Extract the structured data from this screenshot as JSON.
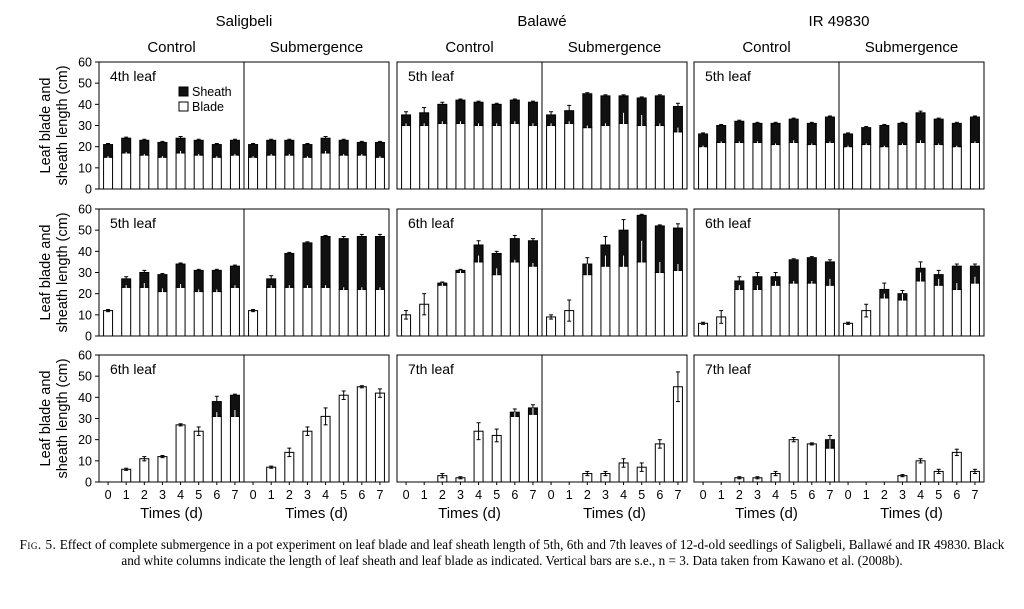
{
  "figure": {
    "fig_label": "Fig. 5.",
    "caption_text": "Effect of complete submergence in a pot experiment on leaf blade and leaf sheath length of 5th, 6th and 7th leaves of 12-d-old seedlings of Saligbeli, Ballawé and IR 49830. Black and white columns indicate the length of leaf sheath and leaf blade as indicated. Vertical bars are s.e., n = 3. Data taken from Kawano et al. (2008b)."
  },
  "colors": {
    "sheath": "#111111",
    "blade": "#ffffff",
    "axis": "#000000"
  },
  "chart_data": {
    "type": "bar",
    "stacked": true,
    "varieties": [
      "Saligbeli",
      "Balawé",
      "IR 49830"
    ],
    "treatments": [
      "Control",
      "Submergence"
    ],
    "legend": {
      "entries": [
        "Sheath",
        "Blade"
      ],
      "placement": "top-left of first panel"
    },
    "ylabel_lines": [
      "Leaf blade and",
      "sheath length (cm)"
    ],
    "xlabel": "Times (d)",
    "x": [
      0,
      1,
      2,
      3,
      4,
      5,
      6,
      7
    ],
    "ylim": [
      0,
      60
    ],
    "yticks": [
      0,
      10,
      20,
      30,
      40,
      50,
      60
    ],
    "series_names": [
      "Blade",
      "Sheath"
    ],
    "rows": [
      {
        "row": 1,
        "leaves": [
          "4th leaf",
          "5th leaf",
          "5th leaf"
        ],
        "panels": [
          {
            "variety": "Saligbeli",
            "treatment": "Control",
            "blade": [
              15,
              17,
              16,
              15,
              17,
              16,
              15,
              16
            ],
            "sheath": [
              6,
              7,
              7,
              7,
              7,
              7,
              6,
              7
            ],
            "blade_err": [
              0.5,
              0.5,
              0.5,
              0.5,
              1.0,
              0.5,
              0.5,
              0.5
            ],
            "total_err": [
              0.5,
              0.5,
              0.5,
              0.5,
              0.8,
              0.5,
              0.5,
              0.5
            ]
          },
          {
            "variety": "Saligbeli",
            "treatment": "Submergence",
            "blade": [
              15,
              16,
              16,
              15,
              17,
              16,
              16,
              15
            ],
            "sheath": [
              6,
              7,
              7,
              6,
              7,
              7,
              6,
              7
            ],
            "blade_err": [
              0.5,
              0.5,
              0.5,
              0.5,
              1.0,
              0.5,
              0.5,
              0.5
            ],
            "total_err": [
              0.5,
              0.5,
              0.5,
              0.5,
              0.8,
              0.5,
              0.5,
              0.5
            ]
          },
          {
            "variety": "Balawé",
            "treatment": "Control",
            "blade": [
              30,
              30,
              31,
              31,
              30,
              30,
              31,
              30
            ],
            "sheath": [
              5,
              6,
              9,
              11,
              11,
              10,
              11,
              11
            ],
            "blade_err": [
              1.0,
              1.0,
              1.0,
              1.0,
              1.0,
              1.0,
              1.0,
              1.0
            ],
            "total_err": [
              1.5,
              2.5,
              1.0,
              0.5,
              0.5,
              0.5,
              0.5,
              0.5
            ]
          },
          {
            "variety": "Balawé",
            "treatment": "Submergence",
            "blade": [
              30,
              31,
              29,
              30,
              31,
              30,
              30,
              27
            ],
            "sheath": [
              5,
              6,
              16,
              14,
              13,
              13,
              14,
              12
            ],
            "blade_err": [
              1.0,
              1.0,
              1.0,
              1.0,
              5.0,
              5.0,
              1.0,
              2.0
            ],
            "total_err": [
              1.5,
              2.5,
              0.5,
              0.5,
              0.5,
              0.5,
              0.5,
              1.5
            ]
          },
          {
            "variety": "IR 49830",
            "treatment": "Control",
            "blade": [
              20,
              22,
              22,
              22,
              21,
              22,
              21,
              22
            ],
            "sheath": [
              6,
              8,
              10,
              9,
              10,
              11,
              10,
              12
            ],
            "blade_err": [
              0.5,
              0.5,
              0.5,
              0.5,
              0.5,
              1.0,
              0.5,
              0.5
            ],
            "total_err": [
              0.5,
              0.5,
              0.5,
              0.5,
              0.5,
              0.5,
              0.5,
              0.5
            ]
          },
          {
            "variety": "IR 49830",
            "treatment": "Submergence",
            "blade": [
              20,
              21,
              20,
              21,
              22,
              21,
              20,
              22
            ],
            "sheath": [
              6,
              8,
              10,
              10,
              14,
              12,
              11,
              12
            ],
            "blade_err": [
              0.5,
              0.5,
              0.5,
              0.5,
              1.0,
              0.5,
              0.5,
              0.5
            ],
            "total_err": [
              0.5,
              0.5,
              0.5,
              0.5,
              0.8,
              0.5,
              0.5,
              0.5
            ]
          }
        ]
      },
      {
        "row": 2,
        "leaves": [
          "5th leaf",
          "6th leaf",
          "6th leaf"
        ],
        "panels": [
          {
            "variety": "Saligbeli",
            "treatment": "Control",
            "blade": [
              12,
              23,
              23,
              21,
              23,
              21,
              21,
              23
            ],
            "sheath": [
              0,
              4,
              7,
              8,
              11,
              10,
              10,
              10
            ],
            "blade_err": [
              0.5,
              1.0,
              2.0,
              1.5,
              1.5,
              1.0,
              1.0,
              1.0
            ],
            "total_err": [
              0.0,
              1.0,
              1.0,
              0.5,
              0.5,
              0.5,
              0.5,
              0.5
            ]
          },
          {
            "variety": "Saligbeli",
            "treatment": "Submergence",
            "blade": [
              12,
              23,
              23,
              23,
              23,
              22,
              22,
              22
            ],
            "sheath": [
              0,
              4,
              16,
              21,
              24,
              24,
              25,
              25
            ],
            "blade_err": [
              0.5,
              1.0,
              1.0,
              1.0,
              1.0,
              1.0,
              1.0,
              1.0
            ],
            "total_err": [
              0.0,
              1.5,
              0.5,
              0.5,
              0.5,
              1.0,
              1.0,
              1.0
            ]
          },
          {
            "variety": "Balawé",
            "treatment": "Control",
            "blade": [
              10,
              15,
              24,
              30,
              35,
              29,
              35,
              33
            ],
            "sheath": [
              0,
              0,
              1,
              1,
              8,
              10,
              11,
              12
            ],
            "blade_err": [
              2.0,
              5.0,
              9.0,
              1.0,
              3.0,
              3.0,
              1.0,
              1.5
            ],
            "total_err": [
              0.0,
              0.0,
              0.5,
              0.5,
              2.0,
              1.0,
              1.5,
              1.0
            ]
          },
          {
            "variety": "Balawé",
            "treatment": "Submergence",
            "blade": [
              9,
              12,
              29,
              33,
              33,
              35,
              30,
              31
            ],
            "sheath": [
              0,
              0,
              5,
              10,
              17,
              22,
              22,
              20
            ],
            "blade_err": [
              1.0,
              5.0,
              5.0,
              5.0,
              5.0,
              10.0,
              5.0,
              3.0
            ],
            "total_err": [
              0.0,
              0.0,
              3.0,
              4.0,
              5.0,
              0.5,
              0.5,
              2.0
            ]
          },
          {
            "variety": "IR 49830",
            "treatment": "Control",
            "blade": [
              6,
              9,
              22,
              22,
              24,
              25,
              25,
              24
            ],
            "sheath": [
              0,
              0,
              4,
              6,
              4,
              11,
              12,
              11
            ],
            "blade_err": [
              0.5,
              3.0,
              2.0,
              2.0,
              2.0,
              1.0,
              1.0,
              3.0
            ],
            "total_err": [
              0.0,
              0.0,
              2.0,
              2.0,
              2.0,
              0.5,
              0.5,
              1.0
            ]
          },
          {
            "variety": "IR 49830",
            "treatment": "Submergence",
            "blade": [
              6,
              12,
              18,
              17,
              26,
              24,
              22,
              25
            ],
            "sheath": [
              0,
              0,
              4,
              3,
              6,
              5,
              11,
              8
            ],
            "blade_err": [
              0.5,
              3.0,
              2.0,
              3.0,
              4.0,
              3.0,
              3.0,
              3.0
            ],
            "total_err": [
              0.0,
              0.0,
              3.0,
              1.5,
              3.0,
              2.0,
              1.0,
              1.0
            ]
          }
        ]
      },
      {
        "row": 3,
        "leaves": [
          "6th leaf",
          "7th leaf",
          "7th leaf"
        ],
        "panels": [
          {
            "variety": "Saligbeli",
            "treatment": "Control",
            "blade": [
              0,
              6,
              11,
              12,
              27,
              24,
              31,
              31
            ],
            "sheath": [
              0,
              0,
              0,
              0,
              0,
              0,
              7,
              10
            ],
            "blade_err": [
              0,
              0.5,
              1.0,
              0.5,
              0.5,
              2.0,
              2.0,
              3.0
            ],
            "total_err": [
              0,
              0,
              0,
              0,
              0,
              0,
              2.5,
              0.5
            ]
          },
          {
            "variety": "Saligbeli",
            "treatment": "Submergence",
            "blade": [
              0,
              7,
              14,
              24,
              31,
              41,
              45,
              42
            ],
            "sheath": [
              0,
              0,
              0,
              0,
              0,
              0,
              0,
              0
            ],
            "blade_err": [
              0,
              0.5,
              2.0,
              2.0,
              4.0,
              2.0,
              0.5,
              2.0
            ],
            "total_err": [
              0,
              0,
              0,
              0,
              0,
              0,
              0,
              0
            ]
          },
          {
            "variety": "Balawé",
            "treatment": "Control",
            "blade": [
              0,
              0,
              3,
              2,
              24,
              22,
              31,
              32
            ],
            "sheath": [
              0,
              0,
              0,
              0,
              0,
              0,
              2,
              3
            ],
            "blade_err": [
              0,
              0,
              1.0,
              0.5,
              4.0,
              3.0,
              4.0,
              4.0
            ],
            "total_err": [
              0,
              0,
              0,
              0,
              0,
              0,
              1.5,
              1.5
            ]
          },
          {
            "variety": "Balawé",
            "treatment": "Submergence",
            "blade": [
              0,
              0,
              4,
              4,
              9,
              7,
              18,
              45
            ],
            "sheath": [
              0,
              0,
              0,
              0,
              0,
              0,
              0,
              0
            ],
            "blade_err": [
              0,
              0,
              1.0,
              1.0,
              2.0,
              2.0,
              2.0,
              7.0
            ],
            "total_err": [
              0,
              0,
              0,
              0,
              0,
              0,
              0,
              0
            ]
          },
          {
            "variety": "IR 49830",
            "treatment": "Control",
            "blade": [
              0,
              0,
              2,
              2,
              4,
              20,
              18,
              16
            ],
            "sheath": [
              0,
              0,
              0,
              0,
              0,
              0,
              0,
              4
            ],
            "blade_err": [
              0,
              0,
              0.5,
              0.5,
              1.0,
              1.0,
              0.5,
              5.0
            ],
            "total_err": [
              0,
              0,
              0,
              0,
              0,
              0,
              0,
              2.0
            ]
          },
          {
            "variety": "IR 49830",
            "treatment": "Submergence",
            "blade": [
              0,
              0,
              0,
              3,
              10,
              5,
              14,
              5
            ],
            "sheath": [
              0,
              0,
              0,
              0,
              0,
              0,
              0,
              0
            ],
            "blade_err": [
              0,
              0,
              0,
              0.5,
              1.0,
              1.0,
              1.5,
              1.0
            ],
            "total_err": [
              0,
              0,
              0,
              0,
              0,
              0,
              0,
              0
            ]
          }
        ]
      }
    ]
  }
}
